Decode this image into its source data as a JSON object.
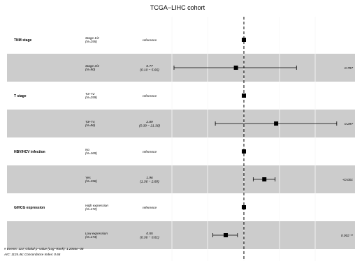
{
  "chart_data": {
    "type": "forest",
    "title": "TCGA−LIHC cohort",
    "x_scale": "log",
    "reference_value": 1,
    "rows": [
      {
        "variable": "TNM stage",
        "level": "Stage 1/2",
        "n": "(N=255)",
        "estimate_text": "reference",
        "hr": 1,
        "ci_low": null,
        "ci_high": null,
        "p": "",
        "shaded": false
      },
      {
        "variable": "",
        "level": "Stage 3/4",
        "n": "(N=90)",
        "estimate_text": "0.77",
        "ci_text": "(0.10 − 5.66)",
        "hr": 0.77,
        "ci_low": 0.1,
        "ci_high": 5.66,
        "p": "0.797",
        "shaded": true
      },
      {
        "variable": "T stage",
        "level": "T1+T2",
        "n": "(N=259)",
        "estimate_text": "reference",
        "hr": 1,
        "ci_low": null,
        "ci_high": null,
        "p": "",
        "shaded": false
      },
      {
        "variable": "",
        "level": "T3+T4",
        "n": "(N=86)",
        "estimate_text": "2.89",
        "ci_text": "(0.39 − 21.30)",
        "hr": 2.89,
        "ci_low": 0.39,
        "ci_high": 21.3,
        "p": "0.297",
        "shaded": true
      },
      {
        "variable": "HBV/HCV infection",
        "level": "No",
        "n": "(N=169)",
        "estimate_text": "reference",
        "hr": 1,
        "ci_low": null,
        "ci_high": null,
        "p": "",
        "shaded": false
      },
      {
        "variable": "",
        "level": "Yes",
        "n": "(N=156)",
        "estimate_text": "1.96",
        "ci_text": "(1.36 − 2.80)",
        "hr": 1.96,
        "ci_low": 1.36,
        "ci_high": 2.8,
        "p": "<0.001",
        "shaded": true
      },
      {
        "variable": "GIHCG expression",
        "level": "High expression",
        "n": "(N=172)",
        "estimate_text": "reference",
        "hr": 1,
        "ci_low": null,
        "ci_high": null,
        "p": "",
        "shaded": false
      },
      {
        "variable": "",
        "level": "Low expression",
        "n": "(N=173)",
        "estimate_text": "0.55",
        "ci_text": "(0.36 − 0.81)",
        "hr": 0.55,
        "ci_low": 0.36,
        "ci_high": 0.81,
        "p": "0.002 **",
        "shaded": true
      }
    ],
    "footnote_1": "# Events: 114; Global p−value (Log−Rank): 1.2066e−08",
    "footnote_2": "AIC: 1124.46; Concordance Index: 0.66"
  }
}
